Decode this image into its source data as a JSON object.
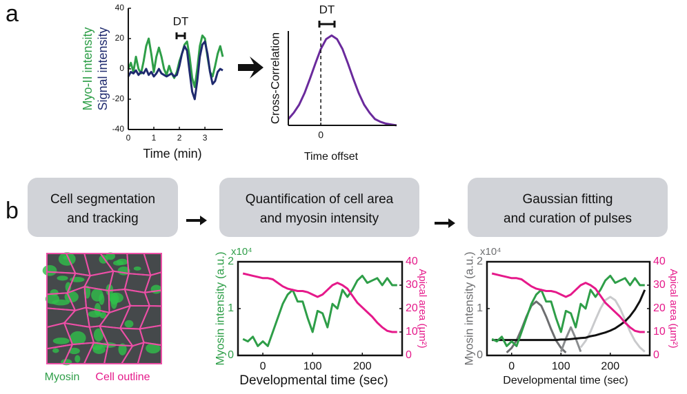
{
  "panel_labels": [
    "a",
    "b"
  ],
  "steps": [
    {
      "lines": [
        "Cell segmentation",
        "and tracking"
      ]
    },
    {
      "lines": [
        "Quantification of cell area",
        "and myosin intensity"
      ]
    },
    {
      "lines": [
        "Gaussian fitting",
        "and curation of pulses"
      ]
    }
  ],
  "image_labels": {
    "myosin": "Myosin",
    "outline": "Cell outline"
  },
  "chart_data": [
    {
      "type": "line",
      "xlabel": "Time (min)",
      "annotation": "DT",
      "x": [
        0,
        0.1,
        0.2,
        0.3,
        0.4,
        0.5,
        0.6,
        0.7,
        0.8,
        0.9,
        1.0,
        1.1,
        1.2,
        1.3,
        1.4,
        1.5,
        1.6,
        1.7,
        1.8,
        1.9,
        2.0,
        2.1,
        2.2,
        2.3,
        2.4,
        2.5,
        2.6,
        2.7,
        2.8,
        2.9,
        3.0,
        3.1,
        3.2,
        3.3,
        3.4,
        3.5,
        3.6,
        3.7
      ],
      "xlim": [
        0,
        3.7
      ],
      "xticks": [
        0,
        1,
        2,
        3
      ],
      "ylim": [
        -40,
        40
      ],
      "yticks": [
        -40,
        -20,
        0,
        20,
        40
      ],
      "series": [
        {
          "name": "Myo-II intensity",
          "color": "#2e9e48",
          "values": [
            0,
            4,
            -2,
            8,
            0,
            -3,
            5,
            15,
            20,
            10,
            -2,
            8,
            14,
            8,
            0,
            -4,
            2,
            -3,
            -6,
            -2,
            5,
            10,
            16,
            18,
            8,
            -6,
            -12,
            0,
            15,
            22,
            20,
            8,
            -2,
            -5,
            2,
            10,
            15,
            8
          ]
        },
        {
          "name": "Signal intensity",
          "color": "#1f2a6e",
          "values": [
            -5,
            -2,
            -3,
            -1,
            -4,
            -2,
            -3,
            0,
            -4,
            -2,
            -5,
            -3,
            0,
            -3,
            -4,
            -5,
            -4,
            -3,
            -5,
            -4,
            2,
            10,
            15,
            12,
            -2,
            -15,
            -20,
            -8,
            8,
            16,
            18,
            10,
            -2,
            -10,
            -8,
            -2,
            0,
            -1
          ]
        }
      ]
    },
    {
      "type": "line",
      "xlabel": "Time offset",
      "ylabel": "Cross-Correlation",
      "annotation": "DT",
      "x": [
        -0.6,
        -0.5,
        -0.4,
        -0.3,
        -0.2,
        -0.1,
        0,
        0.1,
        0.2,
        0.3,
        0.4,
        0.5,
        0.6,
        0.7,
        0.8,
        0.9,
        1.0,
        1.1,
        1.2,
        1.3,
        1.4
      ],
      "xlim": [
        -0.6,
        1.4
      ],
      "xticks": [
        0
      ],
      "ylim": [
        0,
        1.05
      ],
      "series": [
        {
          "color": "#6a2a9c",
          "values": [
            0.07,
            0.14,
            0.23,
            0.36,
            0.52,
            0.69,
            0.85,
            0.96,
            1,
            0.96,
            0.85,
            0.69,
            0.52,
            0.36,
            0.23,
            0.14,
            0.07,
            0.04,
            0.02,
            0.01,
            0
          ]
        }
      ]
    },
    {
      "type": "line",
      "xlabel": "Developmental time (sec)",
      "ylabel": "Myosin intensity (a.u.)",
      "y_multiplier": "x10⁴",
      "y2label": "Apical area (µm²)",
      "x": [
        -40,
        -30,
        -20,
        -10,
        0,
        10,
        20,
        30,
        40,
        50,
        60,
        70,
        80,
        90,
        100,
        110,
        120,
        130,
        140,
        150,
        160,
        170,
        180,
        190,
        200,
        210,
        220,
        230,
        240,
        250,
        260,
        270
      ],
      "xlim": [
        -50,
        280
      ],
      "xticks": [
        0,
        100,
        200
      ],
      "ylim": [
        0,
        2
      ],
      "yticks": [
        0,
        1,
        2
      ],
      "y2lim": [
        0,
        40
      ],
      "y2ticks": [
        0,
        10,
        20,
        30,
        40
      ],
      "series": [
        {
          "color": "#2e9e48",
          "values": [
            0.35,
            0.3,
            0.4,
            0.2,
            0.3,
            0.2,
            0.5,
            0.8,
            1.1,
            1.3,
            1.4,
            1.15,
            1.15,
            0.8,
            0.5,
            0.95,
            0.9,
            0.6,
            1.1,
            1.0,
            1.4,
            1.25,
            1.4,
            1.6,
            1.7,
            1.55,
            1.6,
            1.65,
            1.5,
            1.65,
            1.5,
            1.5
          ]
        },
        {
          "color": "#e5198a",
          "axis": "y2",
          "values": [
            35,
            34.5,
            34,
            33.5,
            33,
            33,
            32.5,
            31,
            29.5,
            28.5,
            28,
            27.5,
            27.5,
            27,
            26,
            25,
            26,
            28,
            30,
            31,
            30,
            28.5,
            25.5,
            22.5,
            20.5,
            18.5,
            16.5,
            14,
            12,
            10.5,
            10,
            10
          ]
        }
      ]
    },
    {
      "type": "line",
      "xlabel": "Developmental time (sec)",
      "ylabel": "Myosin intensity (a.u.)",
      "y_multiplier": "x10⁴",
      "y2label": "Apical area (µm²)",
      "x": [
        -40,
        -30,
        -20,
        -10,
        0,
        10,
        20,
        30,
        40,
        50,
        60,
        70,
        80,
        90,
        100,
        110,
        120,
        130,
        140,
        150,
        160,
        170,
        180,
        190,
        200,
        210,
        220,
        230,
        240,
        250,
        260,
        270
      ],
      "xlim": [
        -50,
        280
      ],
      "xticks": [
        0,
        100,
        200
      ],
      "ylim": [
        0,
        2
      ],
      "yticks": [
        0,
        1,
        2
      ],
      "y2lim": [
        0,
        40
      ],
      "y2ticks": [
        0,
        10,
        20,
        30,
        40
      ],
      "series": [
        {
          "color": "#6d6e70",
          "values": [
            null,
            null,
            null,
            0.06,
            0.16,
            0.32,
            0.56,
            0.83,
            1.06,
            1.15,
            1.06,
            0.83,
            0.56,
            0.32,
            0.16,
            0.06,
            null,
            null,
            null,
            null,
            null,
            null,
            null,
            null,
            null,
            null,
            null,
            null,
            null,
            null,
            null,
            null
          ]
        },
        {
          "color": "#8a8c8e",
          "values": [
            null,
            null,
            null,
            null,
            null,
            null,
            null,
            null,
            null,
            null,
            null,
            null,
            null,
            null,
            0.08,
            0.36,
            0.6,
            0.36,
            0.08,
            null,
            null,
            null,
            null,
            null,
            null,
            null,
            null,
            null,
            null,
            null,
            null,
            null
          ]
        },
        {
          "color": "#c9cacc",
          "values": [
            null,
            null,
            null,
            null,
            null,
            null,
            null,
            null,
            null,
            null,
            null,
            null,
            null,
            null,
            null,
            null,
            null,
            null,
            0.17,
            0.31,
            0.51,
            0.76,
            1.0,
            1.18,
            1.25,
            1.18,
            1.0,
            0.76,
            0.51,
            0.31,
            0.17,
            0.08
          ]
        },
        {
          "color": "#111111",
          "values": [
            0.33,
            0.33,
            0.33,
            0.33,
            0.33,
            0.33,
            0.33,
            0.33,
            0.33,
            0.33,
            0.33,
            0.33,
            0.33,
            0.33,
            0.34,
            0.34,
            0.35,
            0.36,
            0.37,
            0.38,
            0.41,
            0.43,
            0.46,
            0.49,
            0.53,
            0.58,
            0.65,
            0.73,
            0.84,
            0.98,
            1.16,
            1.4
          ]
        },
        {
          "color": "#2e9e48",
          "values": [
            0.35,
            0.3,
            0.4,
            0.2,
            0.3,
            0.2,
            0.5,
            0.8,
            1.1,
            1.3,
            1.4,
            1.15,
            1.15,
            0.8,
            0.5,
            0.95,
            0.9,
            0.6,
            1.1,
            1.0,
            1.4,
            1.25,
            1.4,
            1.6,
            1.7,
            1.55,
            1.6,
            1.65,
            1.5,
            1.65,
            1.5,
            1.5
          ]
        },
        {
          "color": "#e5198a",
          "axis": "y2",
          "values": [
            35,
            34.5,
            34,
            33.5,
            33,
            33,
            32.5,
            31,
            29.5,
            28.5,
            28,
            27.5,
            27.5,
            27,
            26,
            25,
            26,
            28,
            30,
            31,
            30,
            28.5,
            25.5,
            22.5,
            20.5,
            18.5,
            16.5,
            14,
            12,
            10.5,
            10,
            10
          ]
        }
      ]
    }
  ]
}
